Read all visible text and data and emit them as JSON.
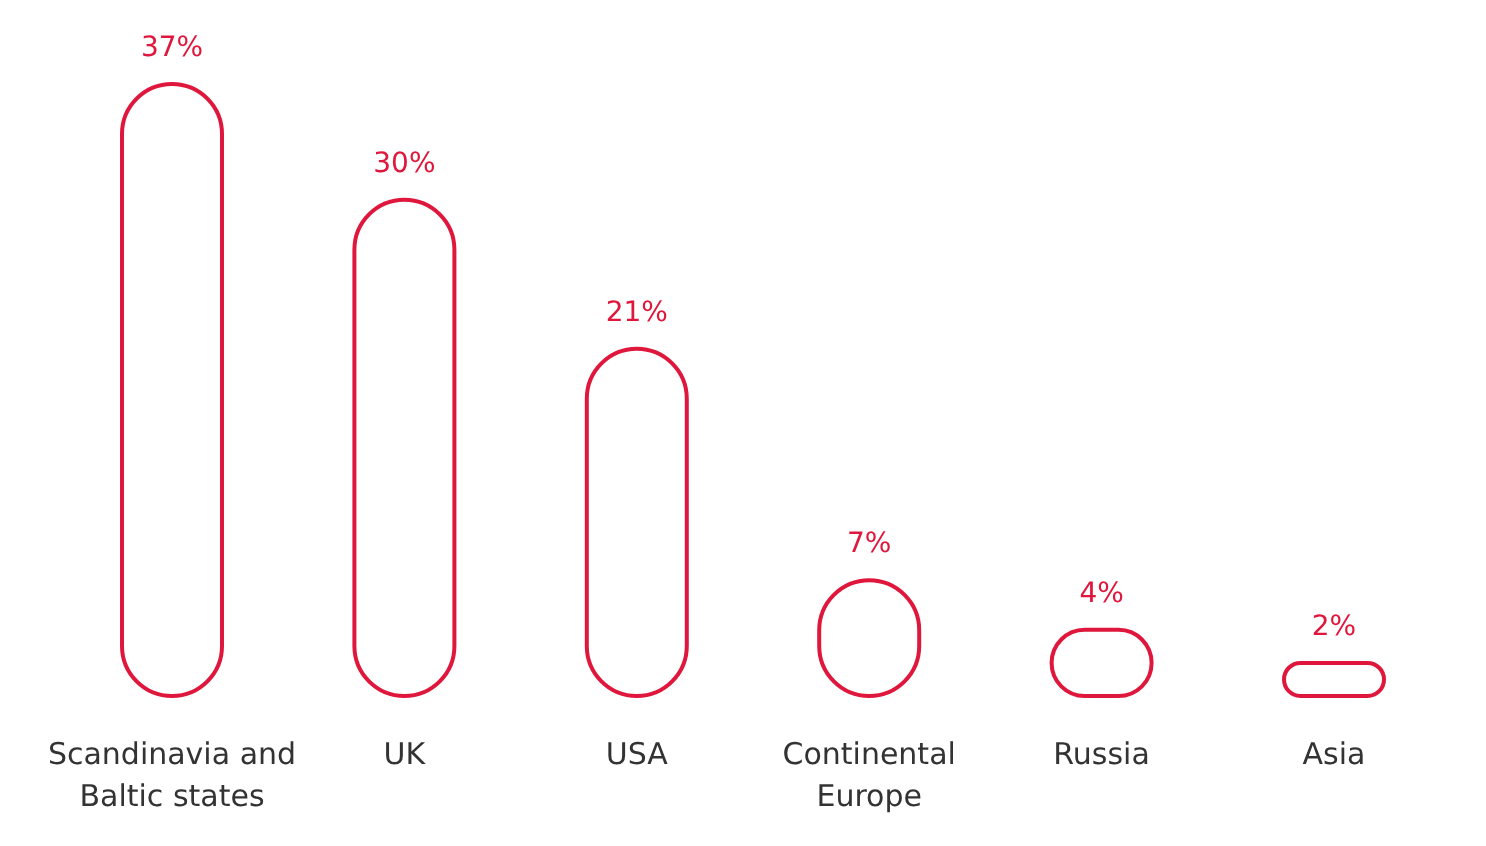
{
  "chart_data": {
    "type": "bar",
    "categories": [
      "Scandinavia and Baltic states",
      "UK",
      "USA",
      "Continental Europe",
      "Russia",
      "Asia"
    ],
    "values": [
      37,
      30,
      21,
      7,
      4,
      2
    ],
    "value_labels": [
      "37%",
      "30%",
      "21%",
      "7%",
      "4%",
      "2%"
    ],
    "color": "#e0173c"
  }
}
